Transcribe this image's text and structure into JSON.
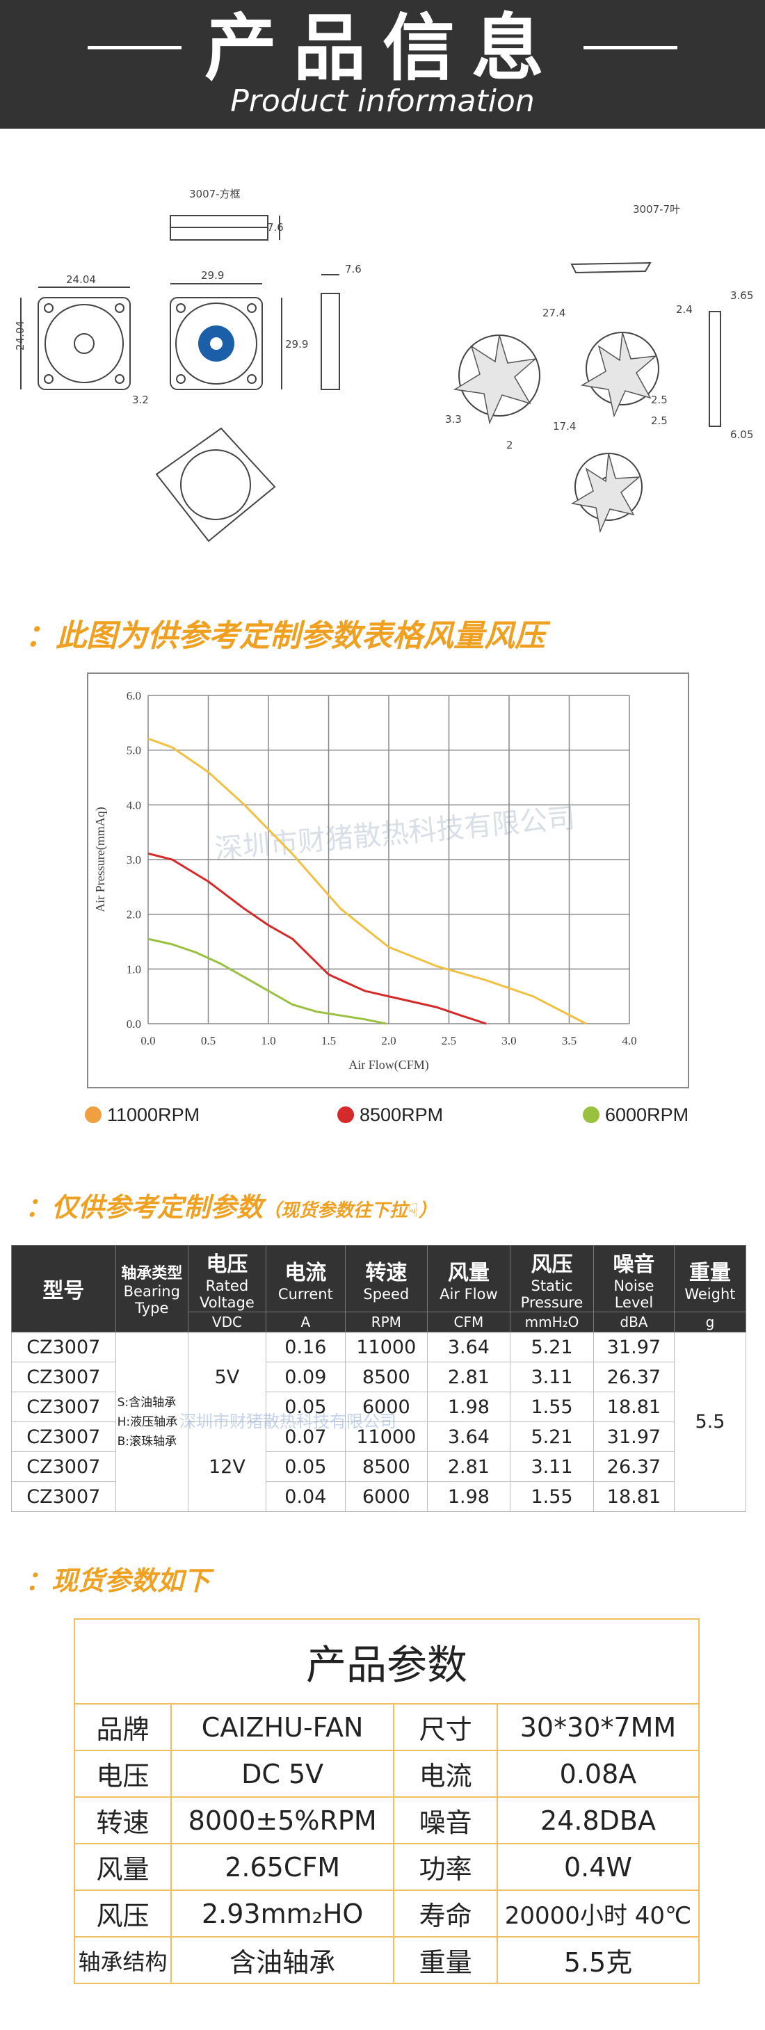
{
  "header": {
    "title": "产品信息",
    "subtitle": "Product information"
  },
  "drawings": {
    "frame_label": "3007-方框",
    "blade_label": "3007-7叶",
    "dims": [
      "24.04",
      "24.04",
      "29.9",
      "29.9",
      "7.6",
      "7.6",
      "3.2",
      "27.4",
      "3.65",
      "2.4",
      "3.3",
      "2.5",
      "2.5",
      "17.4",
      "2",
      "6.05"
    ]
  },
  "section1": {
    "colon": "：",
    "title": "此图为供参考定制参数表格风量风压"
  },
  "chart_data": {
    "type": "line",
    "xlabel": "Air Flow(CFM)",
    "ylabel": "Air Pressure(mmAq)",
    "xlim": [
      0.0,
      4.0
    ],
    "ylim": [
      0.0,
      6.0
    ],
    "xticks": [
      "0.0",
      "0.5",
      "1.0",
      "1.5",
      "2.0",
      "2.5",
      "3.0",
      "3.5",
      "4.0"
    ],
    "yticks": [
      "0.0",
      "1.0",
      "2.0",
      "3.0",
      "4.0",
      "5.0",
      "6.0"
    ],
    "grid": true,
    "legend_position": "bottom",
    "watermark": "深圳市财猪散热科技有限公司",
    "series": [
      {
        "name": "11000RPM",
        "color": "#f0c040",
        "x": [
          0.0,
          0.2,
          0.5,
          0.8,
          1.2,
          1.6,
          2.0,
          2.4,
          2.8,
          3.2,
          3.64
        ],
        "y": [
          5.21,
          5.05,
          4.6,
          4.0,
          3.1,
          2.1,
          1.4,
          1.05,
          0.8,
          0.5,
          0.0
        ]
      },
      {
        "name": "8500RPM",
        "color": "#d52a2a",
        "x": [
          0.0,
          0.2,
          0.5,
          0.8,
          1.0,
          1.2,
          1.5,
          1.8,
          2.1,
          2.4,
          2.6,
          2.81
        ],
        "y": [
          3.11,
          3.0,
          2.6,
          2.1,
          1.8,
          1.55,
          0.9,
          0.6,
          0.45,
          0.3,
          0.15,
          0.0
        ]
      },
      {
        "name": "6000RPM",
        "color": "#9ac040",
        "x": [
          0.0,
          0.2,
          0.4,
          0.6,
          0.8,
          1.0,
          1.2,
          1.4,
          1.6,
          1.8,
          1.98
        ],
        "y": [
          1.55,
          1.45,
          1.3,
          1.1,
          0.85,
          0.6,
          0.35,
          0.22,
          0.15,
          0.08,
          0.0
        ]
      }
    ]
  },
  "section2": {
    "colon": "：",
    "title": "仅供参考定制参数",
    "note": "（现货参数往下拉"
  },
  "spec_table": {
    "headers": [
      {
        "main": "型号",
        "en": "",
        "unit": ""
      },
      {
        "main": "轴承类型",
        "en": "Bearing Type",
        "unit": ""
      },
      {
        "main": "电压",
        "en": "Rated Voltage",
        "unit": "VDC"
      },
      {
        "main": "电流",
        "en": "Current",
        "unit": "A"
      },
      {
        "main": "转速",
        "en": "Speed",
        "unit": "RPM"
      },
      {
        "main": "风量",
        "en": "Air Flow",
        "unit": "CFM"
      },
      {
        "main": "风压",
        "en": "Static Pressure",
        "unit": "mmH₂O"
      },
      {
        "main": "噪音",
        "en": "Noise Level",
        "unit": "dBA"
      },
      {
        "main": "重量",
        "en": "Weight",
        "unit": "g"
      }
    ],
    "bearing_types": [
      "S:含油轴承",
      "H:液压轴承",
      "B:滚珠轴承"
    ],
    "voltages": [
      "5V",
      "12V"
    ],
    "weight": "5.5",
    "watermark": "深圳市财猪散热科技有限公司",
    "rows": [
      [
        "CZ3007",
        "0.16",
        "11000",
        "3.64",
        "5.21",
        "31.97"
      ],
      [
        "CZ3007",
        "0.09",
        "8500",
        "2.81",
        "3.11",
        "26.37"
      ],
      [
        "CZ3007",
        "0.05",
        "6000",
        "1.98",
        "1.55",
        "18.81"
      ],
      [
        "CZ3007",
        "0.07",
        "11000",
        "3.64",
        "5.21",
        "31.97"
      ],
      [
        "CZ3007",
        "0.05",
        "8500",
        "2.81",
        "3.11",
        "26.37"
      ],
      [
        "CZ3007",
        "0.04",
        "6000",
        "1.98",
        "1.55",
        "18.81"
      ]
    ]
  },
  "section3": {
    "colon": "：",
    "title": "现货参数如下"
  },
  "stock_table": {
    "title": "产品参数",
    "rows": [
      [
        "品牌",
        "CAIZHU-FAN",
        "尺寸",
        "30*30*7MM"
      ],
      [
        "电压",
        "DC 5V",
        "电流",
        "0.08A"
      ],
      [
        "转速",
        "8000±5%RPM",
        "噪音",
        "24.8DBA"
      ],
      [
        "风量",
        "2.65CFM",
        "功率",
        "0.4W"
      ],
      [
        "风压",
        "2.93mm₂HO",
        "寿命",
        "20000小时 40℃"
      ],
      [
        "轴承结构",
        "含油轴承",
        "重量",
        "5.5克"
      ]
    ]
  }
}
